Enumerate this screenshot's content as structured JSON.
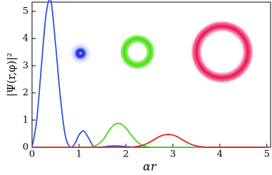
{
  "chart_data": {
    "type": "line",
    "xlabel": "αr",
    "ylabel": "|Ψ(r,φ)|²",
    "x": [
      0,
      0.1,
      0.2,
      0.3,
      0.4,
      0.5,
      0.6,
      0.7,
      0.8,
      0.9,
      1.0,
      1.1,
      1.2,
      1.3,
      1.4,
      1.5,
      1.6,
      1.7,
      1.8,
      1.9,
      2.0,
      2.1,
      2.2,
      2.3,
      2.4,
      2.5,
      2.6,
      2.7,
      2.8,
      2.9,
      3.0,
      3.1,
      3.2,
      3.3,
      3.4,
      3.5,
      3.6,
      3.7,
      3.8,
      3.9,
      4.0,
      4.1,
      4.2,
      4.3,
      4.4,
      4.5,
      4.6,
      4.7,
      4.8,
      4.9,
      5.0
    ],
    "series": [
      {
        "color": "#3050e0",
        "values": [
          0,
          1.0,
          3.0,
          4.9,
          5.4,
          3.8,
          1.9,
          0.5,
          0.02,
          0.1,
          0.45,
          0.6,
          0.35,
          0.05,
          0,
          0.01,
          0.03,
          0.05,
          0.05,
          0.04,
          0.02,
          0.01,
          0,
          0,
          0,
          0,
          0,
          0,
          0,
          0,
          0,
          0,
          0,
          0,
          0,
          0,
          0,
          0,
          0,
          0,
          0,
          0,
          0,
          0,
          0,
          0,
          0,
          0,
          0,
          0,
          0
        ]
      },
      {
        "color": "#50d020",
        "values": [
          0,
          0,
          0,
          0,
          0,
          0,
          0,
          0,
          0,
          0,
          0,
          0,
          0,
          0.02,
          0.1,
          0.25,
          0.5,
          0.75,
          0.87,
          0.85,
          0.7,
          0.48,
          0.27,
          0.12,
          0.04,
          0.01,
          0,
          0,
          0,
          0,
          0,
          0,
          0,
          0,
          0,
          0,
          0,
          0,
          0,
          0,
          0,
          0,
          0,
          0,
          0,
          0,
          0,
          0,
          0,
          0,
          0
        ]
      },
      {
        "color": "#e02020",
        "values": [
          0,
          0,
          0,
          0,
          0,
          0,
          0,
          0,
          0,
          0,
          0,
          0,
          0,
          0,
          0,
          0,
          0,
          0,
          0,
          0,
          0,
          0,
          0.02,
          0.05,
          0.1,
          0.18,
          0.28,
          0.38,
          0.45,
          0.47,
          0.45,
          0.38,
          0.28,
          0.18,
          0.1,
          0.05,
          0.02,
          0,
          0,
          0,
          0,
          0,
          0,
          0,
          0,
          0,
          0,
          0,
          0,
          0,
          0
        ]
      }
    ],
    "xlim": [
      0,
      5.08
    ],
    "ylim": [
      0,
      5.34
    ],
    "xticks": [
      0,
      1,
      2,
      3,
      4,
      5
    ],
    "yticks": [
      0,
      1,
      2,
      3,
      4,
      5
    ]
  }
}
